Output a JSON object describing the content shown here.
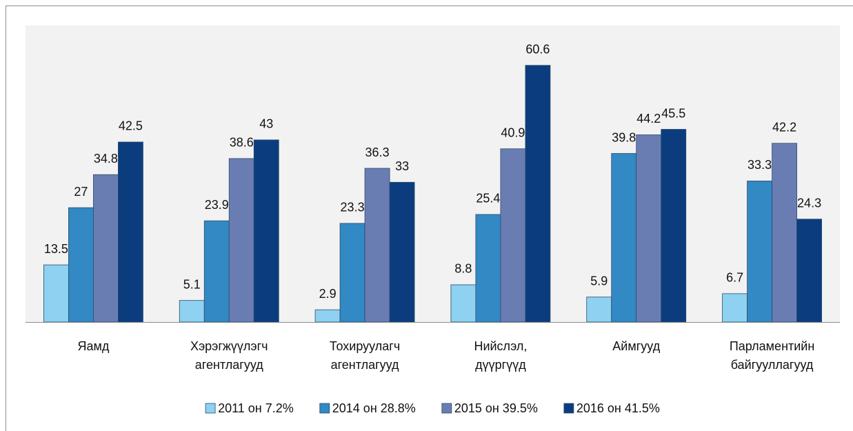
{
  "chart_data": {
    "type": "bar",
    "categories": [
      "Яамд",
      "Хэрэгжүүлэгч агентлагууд",
      "Тохируулагч агентлагууд",
      "Нийслэл, дүүргүүд",
      "Аймгууд",
      "Парламентийн байгууллагууд"
    ],
    "series": [
      {
        "name": "2011 он 7.2%",
        "color": "#8ed1f0",
        "values": [
          13.5,
          5.1,
          2.9,
          8.8,
          5.9,
          6.7
        ]
      },
      {
        "name": "2014 он 28.8%",
        "color": "#3289c3",
        "values": [
          27,
          23.9,
          23.3,
          25.4,
          39.8,
          33.3
        ]
      },
      {
        "name": "2015 он 39.5%",
        "color": "#6a7db3",
        "values": [
          34.8,
          38.6,
          36.3,
          40.9,
          44.2,
          42.2
        ]
      },
      {
        "name": "2016 он 41.5%",
        "color": "#0b3d7e",
        "values": [
          42.5,
          43,
          33,
          60.6,
          45.5,
          24.3
        ]
      }
    ],
    "ylim": [
      0,
      70
    ],
    "legend": "bottom"
  }
}
